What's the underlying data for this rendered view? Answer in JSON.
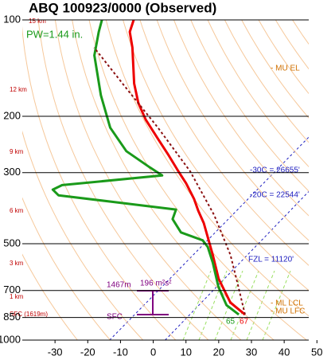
{
  "chart_data": {
    "type": "skewt",
    "title": "ABQ   100923/0000  (Observed)",
    "ylog": true,
    "ylim": [
      1000,
      100
    ],
    "yticks": [
      100,
      200,
      300,
      500,
      700,
      850,
      1000
    ],
    "xlim": [
      -40,
      47.5
    ],
    "xticks": [
      -30,
      -20,
      -10,
      0,
      10,
      20,
      30,
      40,
      50
    ],
    "grid": true,
    "annotations": {
      "pw": "PW=1.44 in.",
      "mu_el": "- MU EL",
      "t30": "-30C = 26655'",
      "t20": "-20C = 22544'",
      "fzl": "FZL = 11120'",
      "srh_top": "1467m",
      "srh": "196 m²s²",
      "srh_sfc": "SFC",
      "ml_lcl": "- ML LCL",
      "mu_lfc": "- MU LFC",
      "sfc_t1": "65",
      "sfc_t2": "67"
    },
    "height_labels": [
      "15 km",
      "12 km",
      "9 km",
      "6 km",
      "3 km",
      "1 km",
      "SFC (1619m)"
    ],
    "series": [
      {
        "color": "#ee0000",
        "width": 3,
        "dash": "none",
        "pressure": [
          832,
          764,
          643,
          542,
          483,
          431,
          395,
          363,
          324,
          297,
          265,
          236,
          205,
          182,
          158,
          122,
          109,
          100
        ],
        "values": [
          21.0,
          13.3,
          3.1,
          -5.2,
          -11.0,
          -16.7,
          -21.7,
          -26.2,
          -33.0,
          -38.7,
          -46.0,
          -53.6,
          -62.8,
          -69.6,
          -76.3,
          -86.7,
          -91.8,
          -93.9
        ]
      },
      {
        "color": "#1a9a1a",
        "width": 3,
        "dash": "none",
        "pressure": [
          832,
          778,
          682,
          574,
          512,
          488,
          461,
          419,
          391,
          353,
          339,
          328,
          306,
          289,
          257,
          217,
          172,
          129,
          109,
          100
        ],
        "values": [
          19.1,
          12.8,
          5.3,
          -3.0,
          -8.9,
          -12.3,
          -21.1,
          -27.3,
          -28.9,
          -68.7,
          -72.0,
          -70.4,
          -42.5,
          -48.4,
          -60.1,
          -71.5,
          -83.2,
          -96.2,
          -101.3,
          -103.6
        ]
      },
      {
        "color": "#8b1010",
        "width": 2,
        "dash": "3,3",
        "pressure": [
          832,
          682,
          542,
          407,
          297,
          217,
          163,
          122
        ],
        "values": [
          21.0,
          11.4,
          0.2,
          -15.7,
          -35.1,
          -56.9,
          -77.6,
          -98.4
        ]
      }
    ]
  }
}
